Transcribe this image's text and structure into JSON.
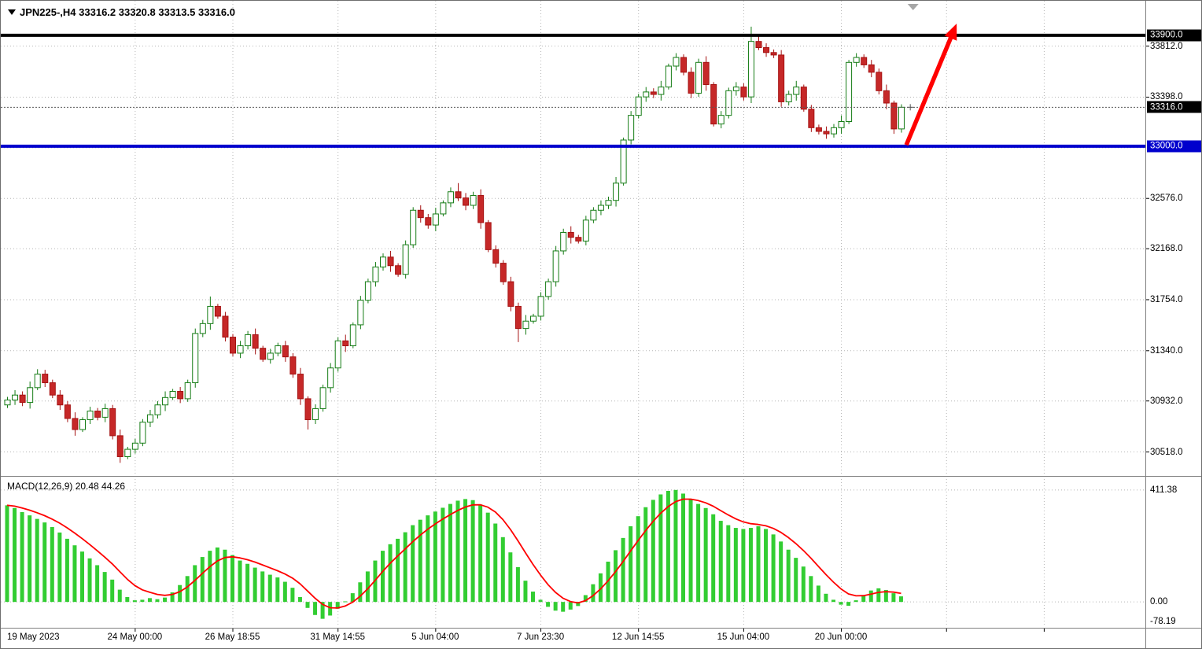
{
  "header": {
    "symbol_ohlc_line": "JPN225-,H4  33316.2 33320.8 33313.5 33316.0"
  },
  "colors": {
    "background": "#FFFFFF",
    "bull_outline": "#157C15",
    "bull_fill": "#FFFFFF",
    "bear_outline": "#A51212",
    "bear_fill": "#C62828",
    "grid": "#B5B5B5",
    "macd_histogram": "#32CD32",
    "macd_signal": "#FF0000",
    "hline_resistance": "#000000",
    "hline_support": "#0000CD",
    "current_price_line": "#555555",
    "arrow": "#FF0000",
    "axis_text": "#000000",
    "badge_text": "#FFFFFF",
    "separator": "#808080",
    "marker": "#A6A6A6"
  },
  "chart_data": {
    "type": "candlestick",
    "title": "JPN225-,H4",
    "symbol": "JPN225-",
    "timeframe": "H4",
    "ohlc": {
      "open": 33316.2,
      "high": 33320.8,
      "low": 33313.5,
      "close": 33316.0
    },
    "current_price": 33316.0,
    "price_axis": {
      "min": 30330,
      "max": 34180,
      "tick_labels": [
        "33812.0",
        "33398.0",
        "32576.0",
        "32168.0",
        "31754.0",
        "31340.0",
        "30932.0",
        "30518.0"
      ],
      "gridline_prices": [
        33812,
        33398,
        32987,
        32576,
        32168,
        31754,
        31340,
        30932,
        30518
      ]
    },
    "badges": [
      {
        "value": "33900.0",
        "price": 33900,
        "bg": "#000000"
      },
      {
        "value": "33316.0",
        "price": 33316,
        "bg": "#000000"
      },
      {
        "value": "33000.0",
        "price": 33000,
        "bg": "#0000CD"
      }
    ],
    "hlines": [
      {
        "price": 33900,
        "color": "#000000",
        "width": 4
      },
      {
        "price": 33000,
        "color": "#0000CD",
        "width": 4
      }
    ],
    "time_labels": [
      {
        "text": "19 May 2023",
        "index": 0,
        "align": "start"
      },
      {
        "text": "24 May 00:00",
        "index": 17
      },
      {
        "text": "26 May 18:55",
        "index": 30
      },
      {
        "text": "31 May 14:55",
        "index": 44
      },
      {
        "text": "5 Jun 04:00",
        "index": 57
      },
      {
        "text": "7 Jun 23:30",
        "index": 71
      },
      {
        "text": "12 Jun 14:55",
        "index": 84
      },
      {
        "text": "15 Jun 04:00",
        "index": 98
      },
      {
        "text": "20 Jun 00:00",
        "index": 111
      }
    ],
    "time_gridline_indices": [
      17,
      30,
      44,
      57,
      71,
      84,
      98,
      111,
      125,
      138
    ],
    "candles": [
      [
        30900,
        30965,
        30875,
        30940
      ],
      [
        30940,
        31020,
        30900,
        30980
      ],
      [
        30980,
        31010,
        30890,
        30920
      ],
      [
        30920,
        31090,
        30870,
        31040
      ],
      [
        31040,
        31190,
        31020,
        31150
      ],
      [
        31150,
        31185,
        31045,
        31080
      ],
      [
        31080,
        31105,
        30955,
        30980
      ],
      [
        30980,
        31020,
        30860,
        30900
      ],
      [
        30900,
        30930,
        30760,
        30790
      ],
      [
        30790,
        30840,
        30650,
        30700
      ],
      [
        30700,
        30800,
        30680,
        30780
      ],
      [
        30780,
        30885,
        30745,
        30850
      ],
      [
        30850,
        30875,
        30775,
        30800
      ],
      [
        30800,
        30910,
        30760,
        30870
      ],
      [
        30870,
        30900,
        30620,
        30650
      ],
      [
        30650,
        30700,
        30430,
        30480
      ],
      [
        30480,
        30560,
        30460,
        30540
      ],
      [
        30540,
        30625,
        30505,
        30590
      ],
      [
        30590,
        30785,
        30565,
        30760
      ],
      [
        30760,
        30860,
        30720,
        30820
      ],
      [
        30820,
        30930,
        30790,
        30900
      ],
      [
        30900,
        31010,
        30850,
        30960
      ],
      [
        30960,
        31030,
        30940,
        31010
      ],
      [
        31010,
        31045,
        30915,
        30950
      ],
      [
        30950,
        31105,
        30925,
        31080
      ],
      [
        31080,
        31520,
        31040,
        31480
      ],
      [
        31480,
        31590,
        31450,
        31560
      ],
      [
        31560,
        31780,
        31510,
        31700
      ],
      [
        31700,
        31720,
        31600,
        31620
      ],
      [
        31620,
        31655,
        31415,
        31450
      ],
      [
        31450,
        31475,
        31295,
        31320
      ],
      [
        31320,
        31420,
        31280,
        31380
      ],
      [
        31380,
        31500,
        31350,
        31470
      ],
      [
        31470,
        31520,
        31310,
        31360
      ],
      [
        31360,
        31380,
        31250,
        31270
      ],
      [
        31270,
        31355,
        31235,
        31320
      ],
      [
        31320,
        31405,
        31295,
        31380
      ],
      [
        31380,
        31420,
        31250,
        31290
      ],
      [
        31290,
        31320,
        31120,
        31150
      ],
      [
        31150,
        31200,
        30900,
        30950
      ],
      [
        30950,
        30970,
        30700,
        30780
      ],
      [
        30780,
        30905,
        30745,
        30870
      ],
      [
        30870,
        31065,
        30845,
        31040
      ],
      [
        31040,
        31240,
        31000,
        31200
      ],
      [
        31200,
        31450,
        31170,
        31420
      ],
      [
        31420,
        31470,
        31330,
        31380
      ],
      [
        31380,
        31570,
        31360,
        31550
      ],
      [
        31550,
        31785,
        31515,
        31750
      ],
      [
        31750,
        31925,
        31725,
        31900
      ],
      [
        31900,
        32060,
        31860,
        32020
      ],
      [
        32020,
        32130,
        31990,
        32100
      ],
      [
        32100,
        32150,
        31980,
        32030
      ],
      [
        32030,
        32050,
        31940,
        31960
      ],
      [
        31960,
        32235,
        31925,
        32200
      ],
      [
        32200,
        32505,
        32175,
        32480
      ],
      [
        32480,
        32520,
        32380,
        32420
      ],
      [
        32420,
        32450,
        32330,
        32360
      ],
      [
        32360,
        32500,
        32310,
        32450
      ],
      [
        32450,
        32560,
        32430,
        32540
      ],
      [
        32540,
        32665,
        32505,
        32630
      ],
      [
        32630,
        32700,
        32555,
        32580
      ],
      [
        32580,
        32620,
        32480,
        32520
      ],
      [
        32520,
        32630,
        32490,
        32600
      ],
      [
        32600,
        32650,
        32330,
        32380
      ],
      [
        32380,
        32400,
        32140,
        32160
      ],
      [
        32160,
        32195,
        32015,
        32050
      ],
      [
        32050,
        32075,
        31875,
        31900
      ],
      [
        31900,
        31940,
        31660,
        31700
      ],
      [
        31700,
        31730,
        31410,
        31520
      ],
      [
        31520,
        31630,
        31470,
        31580
      ],
      [
        31580,
        31640,
        31560,
        31620
      ],
      [
        31620,
        31815,
        31585,
        31780
      ],
      [
        31780,
        31925,
        31755,
        31900
      ],
      [
        31900,
        32190,
        31860,
        32150
      ],
      [
        32150,
        32330,
        32120,
        32300
      ],
      [
        32300,
        32350,
        32210,
        32260
      ],
      [
        32260,
        32280,
        32210,
        32230
      ],
      [
        32230,
        32435,
        32195,
        32400
      ],
      [
        32400,
        32505,
        32375,
        32480
      ],
      [
        32480,
        32560,
        32440,
        32520
      ],
      [
        32520,
        32590,
        32490,
        32560
      ],
      [
        32560,
        32750,
        32510,
        32700
      ],
      [
        32700,
        33070,
        32680,
        33050
      ],
      [
        33050,
        33285,
        33015,
        33250
      ],
      [
        33250,
        33425,
        33225,
        33400
      ],
      [
        33400,
        33480,
        33360,
        33440
      ],
      [
        33440,
        33470,
        33390,
        33420
      ],
      [
        33420,
        33530,
        33370,
        33480
      ],
      [
        33480,
        33670,
        33460,
        33650
      ],
      [
        33650,
        33755,
        33615,
        33720
      ],
      [
        33720,
        33745,
        33575,
        33600
      ],
      [
        33600,
        33640,
        33390,
        33430
      ],
      [
        33430,
        33710,
        33400,
        33680
      ],
      [
        33680,
        33730,
        33450,
        33500
      ],
      [
        33500,
        33520,
        33160,
        33180
      ],
      [
        33180,
        33285,
        33145,
        33250
      ],
      [
        33250,
        33475,
        33225,
        33450
      ],
      [
        33450,
        33520,
        33410,
        33480
      ],
      [
        33480,
        33510,
        33370,
        33400
      ],
      [
        33400,
        33970,
        33350,
        33850
      ],
      [
        33850,
        33900,
        33780,
        33800
      ],
      [
        33800,
        33835,
        33725,
        33760
      ],
      [
        33760,
        33785,
        33715,
        33740
      ],
      [
        33740,
        33780,
        33320,
        33360
      ],
      [
        33360,
        33450,
        33330,
        33420
      ],
      [
        33420,
        33530,
        33370,
        33480
      ],
      [
        33480,
        33500,
        33280,
        33300
      ],
      [
        33300,
        33335,
        33115,
        33150
      ],
      [
        33150,
        33175,
        33095,
        33120
      ],
      [
        33120,
        33160,
        33060,
        33100
      ],
      [
        33100,
        33180,
        33070,
        33150
      ],
      [
        33150,
        33250,
        33100,
        33200
      ],
      [
        33200,
        33700,
        33180,
        33680
      ],
      [
        33680,
        33755,
        33645,
        33720
      ],
      [
        33720,
        33745,
        33635,
        33660
      ],
      [
        33660,
        33700,
        33560,
        33600
      ],
      [
        33600,
        33630,
        33420,
        33450
      ],
      [
        33450,
        33500,
        33300,
        33350
      ],
      [
        33350,
        33370,
        33100,
        33140
      ],
      [
        33140,
        33340,
        33110,
        33316
      ]
    ],
    "macd": {
      "label": "MACD(12,26,9) 20.48 44.26",
      "params": "12,26,9",
      "value": 20.48,
      "signal": 44.26,
      "range": {
        "min": -92,
        "max": 460
      },
      "axis_labels": [
        {
          "text": "411.38",
          "value": 411.38,
          "gridline": true
        },
        {
          "text": "0.00",
          "value": 0,
          "gridline": true
        },
        {
          "text": "-78.19",
          "value": -78.19,
          "gridline": false
        }
      ],
      "histogram": [
        355,
        345,
        330,
        318,
        305,
        292,
        275,
        255,
        232,
        208,
        185,
        160,
        135,
        110,
        82,
        45,
        18,
        6,
        8,
        14,
        10,
        16,
        35,
        62,
        95,
        135,
        165,
        188,
        200,
        192,
        172,
        152,
        140,
        126,
        112,
        100,
        90,
        74,
        52,
        18,
        -22,
        -48,
        -62,
        -50,
        -25,
        2,
        32,
        72,
        112,
        152,
        188,
        212,
        232,
        256,
        282,
        302,
        318,
        332,
        346,
        360,
        372,
        378,
        374,
        358,
        328,
        288,
        238,
        182,
        128,
        78,
        38,
        8,
        -18,
        -32,
        -36,
        -28,
        -15,
        25,
        65,
        105,
        148,
        190,
        235,
        278,
        315,
        348,
        375,
        395,
        408,
        411.38,
        398,
        378,
        360,
        345,
        322,
        298,
        282,
        272,
        268,
        272,
        278,
        268,
        248,
        222,
        192,
        162,
        130,
        95,
        60,
        30,
        8,
        -10,
        -14,
        6,
        25,
        42,
        50,
        44,
        32,
        20.48
      ]
    },
    "annotations": {
      "arrow": {
        "from": {
          "index": 119.7,
          "price": 33010
        },
        "to": {
          "index": 126.4,
          "price": 33995
        },
        "color": "#FF0000"
      },
      "top_marker": {
        "index": 120.6
      },
      "last_price_marker": {
        "index": 119.6,
        "price": 33316
      }
    }
  }
}
